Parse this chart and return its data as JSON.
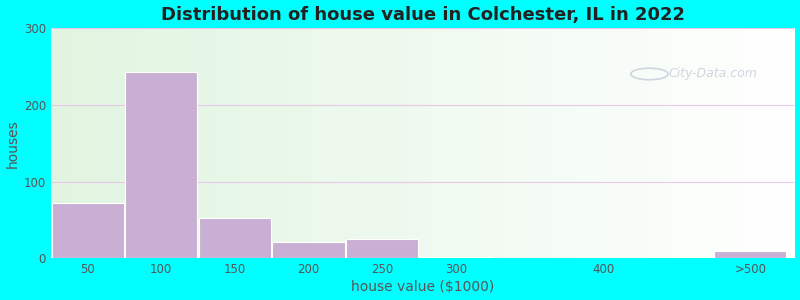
{
  "title": "Distribution of house value in Colchester, IL in 2022",
  "xlabel": "house value ($1000)",
  "ylabel": "houses",
  "bar_lefts": [
    25,
    75,
    125,
    175,
    225,
    275,
    375,
    475
  ],
  "bar_widths": [
    50,
    50,
    50,
    50,
    50,
    50,
    50,
    50
  ],
  "bar_values": [
    72,
    243,
    53,
    22,
    25,
    2,
    0,
    10
  ],
  "xtick_positions": [
    50,
    100,
    150,
    200,
    250,
    300,
    400,
    500
  ],
  "xtick_labels": [
    "50",
    "100",
    "150",
    "200",
    "250",
    "300",
    "400",
    ">500"
  ],
  "bar_color": "#c9afd4",
  "bar_edgecolor": "#ffffff",
  "ylim": [
    0,
    300
  ],
  "xlim": [
    25,
    530
  ],
  "yticks": [
    0,
    100,
    200,
    300
  ],
  "bg_outer": "#00ffff",
  "bg_inner": "#f2faee",
  "grid_color": "#e8c8e8",
  "title_fontsize": 13,
  "axis_label_fontsize": 10,
  "tick_fontsize": 8.5,
  "watermark_text": "City-Data.com",
  "watermark_color": "#c0c8d8",
  "watermark_alpha": 0.75
}
